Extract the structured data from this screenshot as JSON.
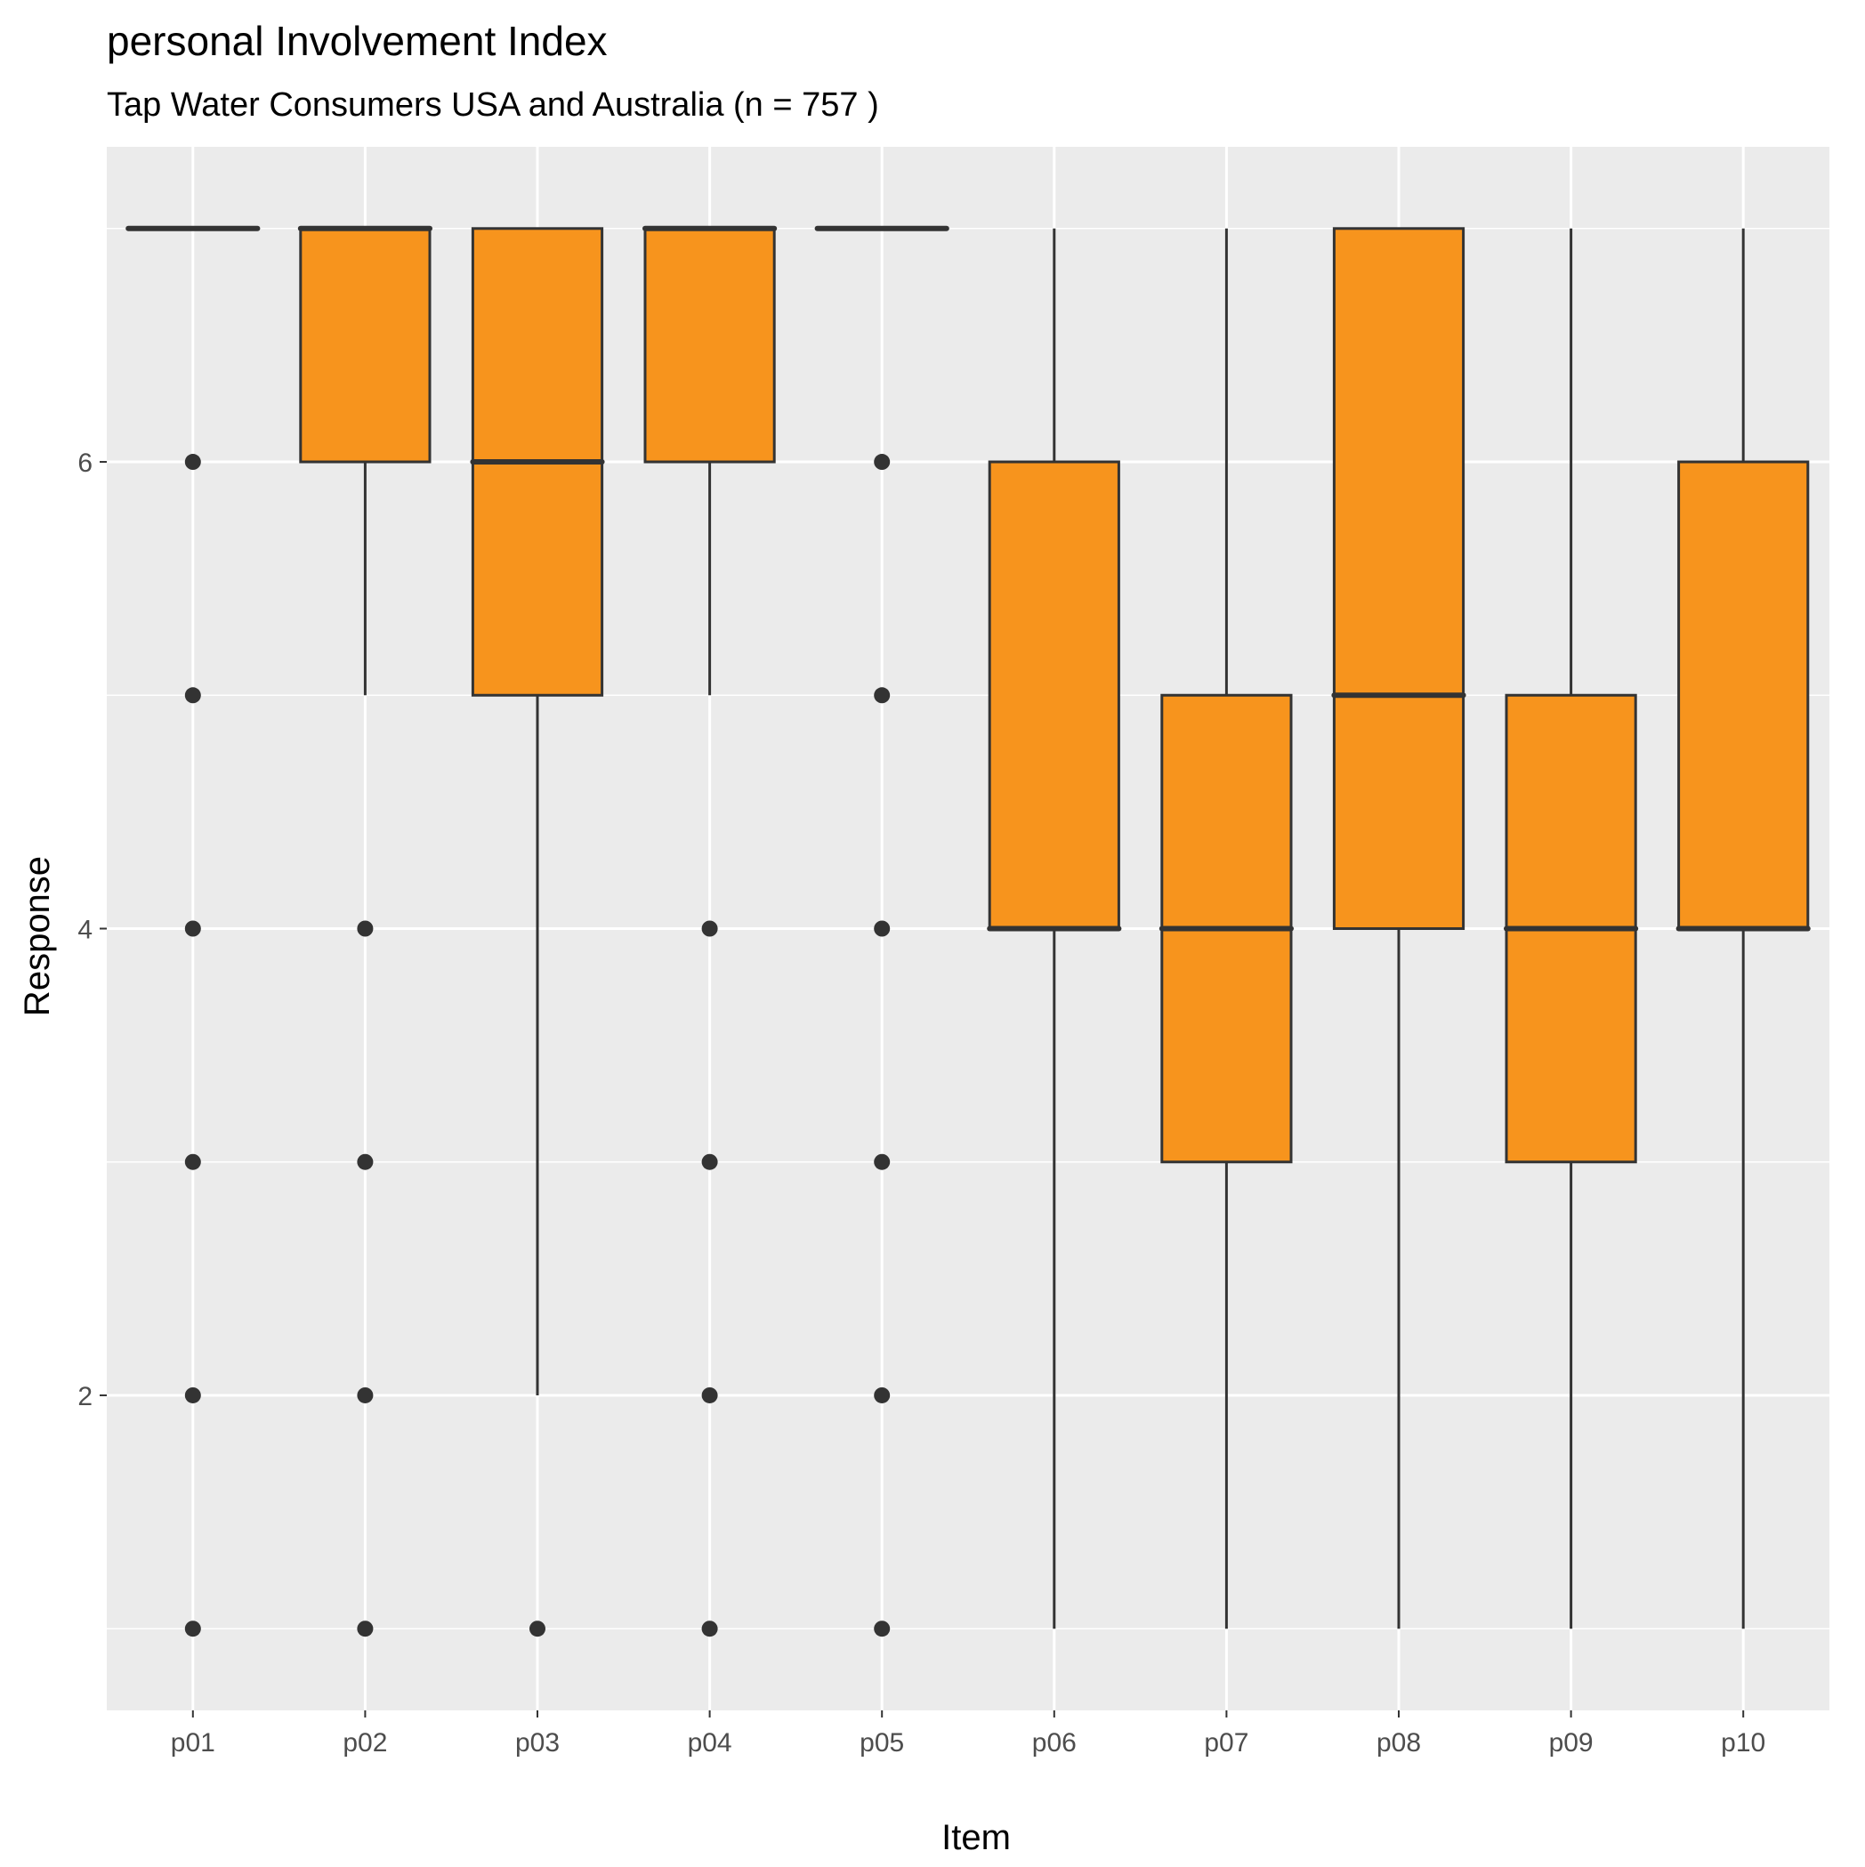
{
  "chart_data": {
    "type": "boxplot",
    "title": "personal Involvement Index",
    "subtitle": "Tap Water Consumers USA and Australia (n = 757 )",
    "xlabel": "Item",
    "ylabel": "Response",
    "categories": [
      "p01",
      "p02",
      "p03",
      "p04",
      "p05",
      "p06",
      "p07",
      "p08",
      "p09",
      "p10"
    ],
    "ylim": [
      0.65,
      7.35
    ],
    "yticks": [
      2,
      4,
      6
    ],
    "ytick_labels": [
      "2",
      "4",
      "6"
    ],
    "grid": true,
    "legend": "none",
    "boxes": [
      {
        "item": "p01",
        "whisker_low": 7,
        "q1": 7,
        "median": 7,
        "q3": 7,
        "whisker_high": 7,
        "outliers": [
          1,
          2,
          3,
          4,
          5,
          6
        ]
      },
      {
        "item": "p02",
        "whisker_low": 5,
        "q1": 6,
        "median": 7,
        "q3": 7,
        "whisker_high": 7,
        "outliers": [
          1,
          2,
          3,
          4
        ]
      },
      {
        "item": "p03",
        "whisker_low": 2,
        "q1": 5,
        "median": 6,
        "q3": 7,
        "whisker_high": 7,
        "outliers": [
          1
        ]
      },
      {
        "item": "p04",
        "whisker_low": 5,
        "q1": 6,
        "median": 7,
        "q3": 7,
        "whisker_high": 7,
        "outliers": [
          1,
          2,
          3,
          4
        ]
      },
      {
        "item": "p05",
        "whisker_low": 7,
        "q1": 7,
        "median": 7,
        "q3": 7,
        "whisker_high": 7,
        "outliers": [
          1,
          2,
          3,
          4,
          5,
          6
        ]
      },
      {
        "item": "p06",
        "whisker_low": 1,
        "q1": 4,
        "median": 4,
        "q3": 6,
        "whisker_high": 7,
        "outliers": []
      },
      {
        "item": "p07",
        "whisker_low": 1,
        "q1": 3,
        "median": 4,
        "q3": 5,
        "whisker_high": 7,
        "outliers": []
      },
      {
        "item": "p08",
        "whisker_low": 1,
        "q1": 4,
        "median": 5,
        "q3": 7,
        "whisker_high": 7,
        "outliers": []
      },
      {
        "item": "p09",
        "whisker_low": 1,
        "q1": 3,
        "median": 4,
        "q3": 5,
        "whisker_high": 7,
        "outliers": []
      },
      {
        "item": "p10",
        "whisker_low": 1,
        "q1": 4,
        "median": 4,
        "q3": 6,
        "whisker_high": 7,
        "outliers": []
      }
    ],
    "colors": {
      "box_fill": "#F7941D",
      "box_line": "#333333",
      "panel_background": "#EBEBEB",
      "grid_line": "#FFFFFF"
    }
  }
}
